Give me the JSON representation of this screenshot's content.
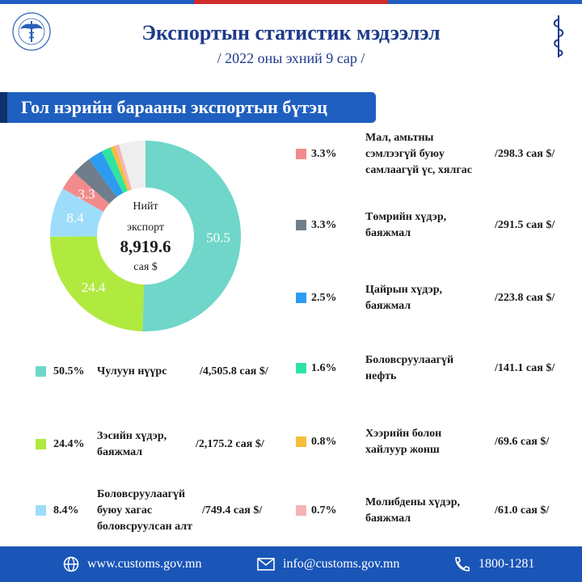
{
  "header": {
    "title": "Экспортын статистик мэдээлэл",
    "subtitle": "/ 2022 оны эхний 9 сар /"
  },
  "section_title": "Гол нэрийн барааны экспортын бүтэц",
  "center": {
    "line1": "Нийт",
    "line2": "экспорт",
    "total": "8,919.6",
    "unit": "сая $"
  },
  "colors": {
    "brand": "#1e3a8a",
    "banner": "#1f5fbf",
    "footer": "#1a56b8",
    "topbar": [
      "#1f5fbf",
      "#d02b2b",
      "#1f5fbf"
    ]
  },
  "chart_data": {
    "type": "pie",
    "style": "donut",
    "center_label": "Нийт экспорт 8,919.6 сая $",
    "slices": [
      {
        "label": "Чулуун нүүрс",
        "percent": 50.5,
        "value_label": "/4,505.8 сая $/",
        "pct_label": "50.5%",
        "data_label": "50.5",
        "color": "#6fd6c9"
      },
      {
        "label": "Зэсийн хүдэр, баяжмал",
        "percent": 24.4,
        "value_label": "/2,175.2 сая $/",
        "pct_label": "24.4%",
        "data_label": "24.4",
        "color": "#b0ea3f"
      },
      {
        "label": "Боловсруулаагүй буюу хагас боловсруулсан алт",
        "percent": 8.4,
        "value_label": "/749.4 сая $/",
        "pct_label": "8.4%",
        "data_label": "8.4",
        "color": "#9dddfa"
      },
      {
        "label": "Мал, амьтны сэмлээгүй буюу самлаагүй үс, хялгас",
        "percent": 3.3,
        "value_label": "/298.3 сая $/",
        "pct_label": "3.3%",
        "data_label": "3.3",
        "color": "#f28b8b"
      },
      {
        "label": "Төмрийн хүдэр, баяжмал",
        "percent": 3.3,
        "value_label": "/291.5 сая $/",
        "pct_label": "3.3%",
        "data_label": "",
        "color": "#6f7e8a"
      },
      {
        "label": "Цайрын хүдэр, баяжмал",
        "percent": 2.5,
        "value_label": "/223.8 сая $/",
        "pct_label": "2.5%",
        "data_label": "",
        "color": "#2d9bf0"
      },
      {
        "label": "Боловсруулаагүй нефть",
        "percent": 1.6,
        "value_label": "/141.1 сая $/",
        "pct_label": "1.6%",
        "data_label": "",
        "color": "#2fe3a3"
      },
      {
        "label": "Хээрийн болон хайлуур жонш",
        "percent": 0.8,
        "value_label": "/69.6 сая $/",
        "pct_label": "0.8%",
        "data_label": "",
        "color": "#f6bd3c"
      },
      {
        "label": "Молибдены хүдэр, баяжмал",
        "percent": 0.7,
        "value_label": "/61.0 сая $/",
        "pct_label": "0.7%",
        "data_label": "",
        "color": "#f6b3b3"
      }
    ],
    "remainder_color": "#eeeeee"
  },
  "legend": [
    {
      "pct": "50.5%",
      "name_lines": [
        "Чулуун нүүрс"
      ],
      "value": "/4,505.8 сая $/"
    },
    {
      "pct": "24.4%",
      "name_lines": [
        "Зэсийн хүдэр,",
        "баяжмал"
      ],
      "value": "/2,175.2 сая $/"
    },
    {
      "pct": "8.4%",
      "name_lines": [
        "Боловсруулаагүй",
        "буюу хагас",
        "боловсруулсан алт"
      ],
      "value": "/749.4 сая $/"
    },
    {
      "pct": "3.3%",
      "name_lines": [
        "Мал, амьтны",
        "сэмлээгүй буюу",
        "самлаагүй үс, хялгас"
      ],
      "value": "/298.3 сая $/"
    },
    {
      "pct": "3.3%",
      "name_lines": [
        "Төмрийн хүдэр,",
        "баяжмал"
      ],
      "value": "/291.5 сая $/"
    },
    {
      "pct": "2.5%",
      "name_lines": [
        "Цайрын хүдэр,",
        "баяжмал"
      ],
      "value": "/223.8 сая $/"
    },
    {
      "pct": "1.6%",
      "name_lines": [
        "Боловсруулаагүй",
        "нефть"
      ],
      "value": "/141.1 сая $/"
    },
    {
      "pct": "0.8%",
      "name_lines": [
        "Хээрийн болон",
        "хайлуур жонш"
      ],
      "value": "/69.6 сая $/"
    },
    {
      "pct": "0.7%",
      "name_lines": [
        "Молибдены хүдэр,",
        "баяжмал"
      ],
      "value": "/61.0 сая $/"
    }
  ],
  "footer": {
    "website": "www.customs.gov.mn",
    "email": "info@customs.gov.mn",
    "phone": "1800-1281",
    "icons": [
      "globe-icon",
      "mail-icon",
      "phone-icon"
    ]
  }
}
